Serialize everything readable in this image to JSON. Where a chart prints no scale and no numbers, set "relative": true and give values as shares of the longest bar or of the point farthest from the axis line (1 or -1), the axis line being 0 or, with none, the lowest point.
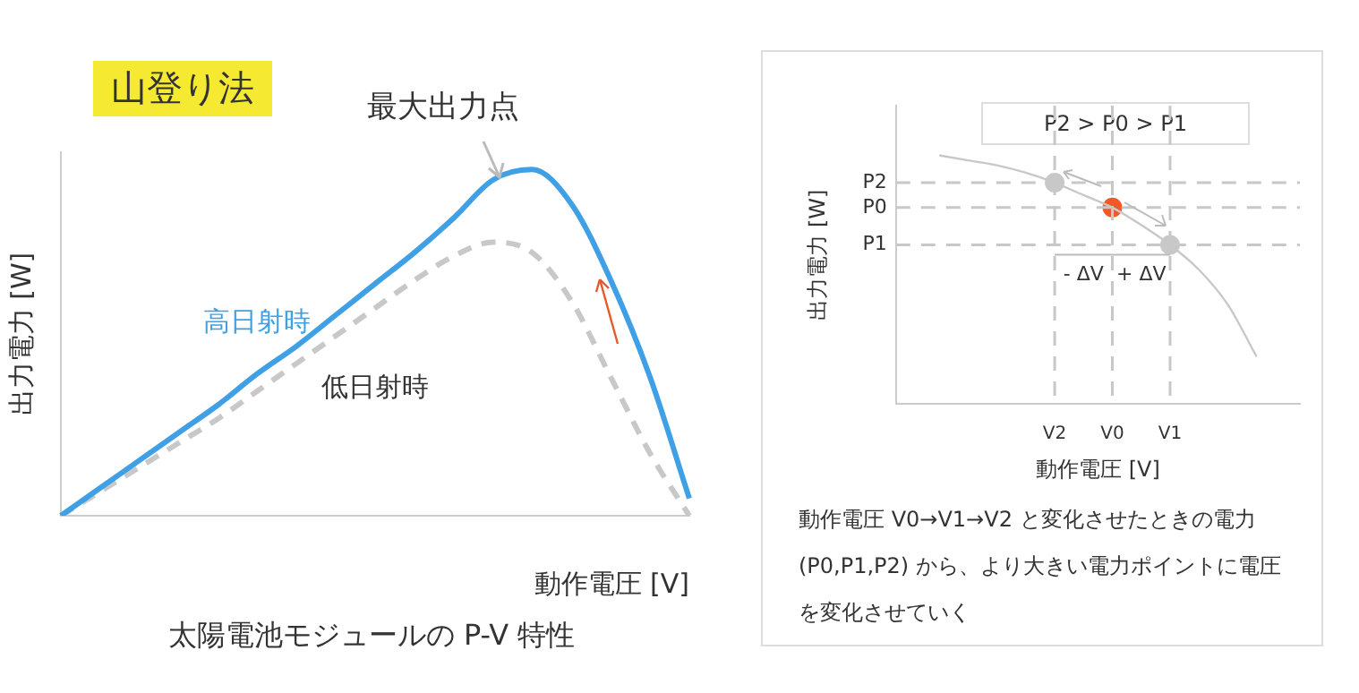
{
  "chart_data": [
    {
      "type": "line",
      "title": "山登り法",
      "xlabel": "動作電圧 [V]",
      "ylabel": "出力電力 [W]",
      "relative": true,
      "categories": [
        null,
        null,
        null,
        null,
        null,
        null,
        null,
        null,
        null,
        null,
        null,
        null,
        null,
        null,
        null,
        null,
        null
      ],
      "series": [
        {
          "name": "高日射時",
          "color": "#3fa0e6",
          "line_style": "solid",
          "values": [
            0,
            0.08,
            0.16,
            0.24,
            0.32,
            0.41,
            0.49,
            0.58,
            0.67,
            0.76,
            0.86,
            0.97,
            1,
            0.9,
            0.68,
            0.4,
            0.05
          ]
        },
        {
          "name": "低日射時",
          "color": "#c8c8c8",
          "line_style": "dashed",
          "values": [
            0,
            0.07,
            0.14,
            0.21,
            0.28,
            0.36,
            0.44,
            0.52,
            0.6,
            0.68,
            0.75,
            0.79,
            0.76,
            0.62,
            0.4,
            0.18,
            0
          ]
        }
      ],
      "annotations": [
        "最大出力点",
        "太陽電池モジュールの P-V 特性"
      ]
    },
    {
      "type": "line",
      "xlabel": "動作電圧 [V]",
      "ylabel": "出力電力 [W]",
      "relative": true,
      "categories": [
        null,
        null,
        null,
        null,
        null,
        "V2",
        null,
        "V0",
        null,
        "V1",
        null,
        null,
        null,
        null
      ],
      "series": [
        {
          "color": "#c8c8c8",
          "line_style": "solid",
          "values": [
            null,
            1,
            0.98,
            0.96,
            0.93,
            0.89,
            0.84,
            0.79,
            0.72,
            0.64,
            0.54,
            0.4,
            0.19,
            null
          ]
        },
        {
          "type": "scatter",
          "x": [
            "V2",
            "V0",
            "V1"
          ],
          "colors": [
            "#c8c8c8",
            "#f05a28",
            "#c8c8c8"
          ],
          "values": [
            0.89,
            0.79,
            0.64
          ]
        }
      ],
      "ref_lines": [
        {
          "axis": "y",
          "value": 0.89,
          "label": "P2",
          "color": "#c8c8c8",
          "line_style": "dashed"
        },
        {
          "axis": "y",
          "value": 0.79,
          "label": "P0",
          "color": "#c8c8c8",
          "line_style": "dashed"
        },
        {
          "axis": "y",
          "value": 0.64,
          "label": "P1",
          "color": "#c8c8c8",
          "line_style": "dashed"
        },
        {
          "axis": "x",
          "value": "V2",
          "color": "#c8c8c8",
          "line_style": "dashed"
        },
        {
          "axis": "x",
          "value": "V0",
          "color": "#c8c8c8",
          "line_style": "dashed"
        },
        {
          "axis": "x",
          "value": "V1",
          "color": "#c8c8c8",
          "line_style": "dashed"
        }
      ],
      "annotations": [
        "P2 > P0 > P1",
        "- ΔV",
        "+ ΔV",
        "動作電圧 V0→V1→V2 と変化させたときの電力 (P0,P1,P2) から、より大きい電力ポイントに電圧を変化させていく"
      ]
    }
  ]
}
